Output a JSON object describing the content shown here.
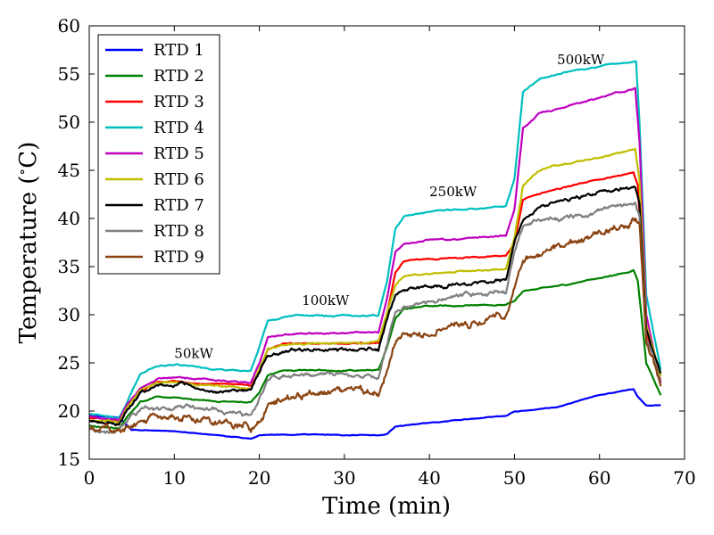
{
  "chart_data": {
    "type": "line",
    "xlabel": "Time (min)",
    "ylabel": "Temperature (∘C)",
    "ylabel_parts": {
      "open": "Temperature (",
      "degree": "∘",
      "unit": "C)"
    },
    "xlim": [
      0,
      70
    ],
    "ylim": [
      15,
      60
    ],
    "xticks": [
      0,
      10,
      20,
      30,
      40,
      50,
      60,
      70
    ],
    "yticks": [
      15,
      20,
      25,
      30,
      35,
      40,
      45,
      50,
      55,
      60
    ],
    "grid": false,
    "legend_position": "top-left",
    "annotations": [
      {
        "text": "50kW",
        "x": 10,
        "y": 25.5
      },
      {
        "text": "100kW",
        "x": 25,
        "y": 31.0
      },
      {
        "text": "250kW",
        "x": 40,
        "y": 42.3
      },
      {
        "text": "500kW",
        "x": 55,
        "y": 56.0
      }
    ],
    "series": [
      {
        "name": "RTD 1",
        "color": "#0000ff",
        "noise": 0.05,
        "x": [
          0,
          3.5,
          5,
          10,
          15,
          19,
          20,
          25,
          30,
          34,
          35,
          36,
          40,
          45,
          49,
          50,
          55,
          60,
          64,
          64.5,
          65.5,
          67.2
        ],
        "y": [
          19.6,
          19.3,
          18.0,
          17.9,
          17.5,
          17.1,
          17.5,
          17.6,
          17.5,
          17.5,
          17.6,
          18.4,
          18.8,
          19.2,
          19.5,
          19.9,
          20.4,
          21.7,
          22.3,
          21.5,
          20.6,
          20.6
        ]
      },
      {
        "name": "RTD 2",
        "color": "#008000",
        "noise": 0.1,
        "x": [
          0,
          3.5,
          4.5,
          6,
          8,
          10,
          15,
          19,
          20,
          21,
          23,
          30,
          34,
          35,
          36,
          37,
          40,
          45,
          49,
          50,
          51,
          55,
          60,
          64,
          64.5,
          65.5,
          67.2
        ],
        "y": [
          18.5,
          18.2,
          19.5,
          21.0,
          21.5,
          21.4,
          21.1,
          21.0,
          22.0,
          23.8,
          24.3,
          24.2,
          24.2,
          26.5,
          29.5,
          30.5,
          30.9,
          31.0,
          31.1,
          31.5,
          32.5,
          33.0,
          33.8,
          34.6,
          33.5,
          25.0,
          21.7
        ]
      },
      {
        "name": "RTD 3",
        "color": "#ff0000",
        "noise": 0.1,
        "x": [
          0,
          3.5,
          4.5,
          6,
          8,
          10,
          15,
          19,
          20,
          21,
          23,
          30,
          34,
          35,
          36,
          37,
          40,
          45,
          49,
          50,
          51,
          55,
          60,
          64,
          64.5,
          65.5,
          67.2
        ],
        "y": [
          19.3,
          19.0,
          20.5,
          22.0,
          23.0,
          23.0,
          22.9,
          22.6,
          24.0,
          26.5,
          27.0,
          27.0,
          27.1,
          30.0,
          34.5,
          35.6,
          35.8,
          36.0,
          36.1,
          37.5,
          42.0,
          43.0,
          44.0,
          44.8,
          43.5,
          28.0,
          23.2
        ]
      },
      {
        "name": "RTD 4",
        "color": "#00bfbf",
        "noise": 0.12,
        "x": [
          0,
          3.5,
          4.5,
          6,
          8,
          10,
          15,
          19,
          20,
          21,
          23,
          30,
          34,
          35,
          36,
          37,
          40,
          45,
          49,
          50,
          51,
          53,
          55,
          60,
          64.3,
          64.7,
          65.5,
          67.2
        ],
        "y": [
          19.7,
          19.3,
          21.0,
          23.8,
          24.7,
          24.9,
          24.3,
          24.1,
          26.5,
          29.3,
          29.8,
          29.9,
          30.0,
          33.5,
          39.0,
          40.3,
          40.7,
          41.0,
          41.2,
          44.0,
          53.0,
          54.5,
          55.0,
          55.8,
          56.3,
          50.0,
          32.0,
          24.3
        ]
      },
      {
        "name": "RTD 5",
        "color": "#bf00bf",
        "noise": 0.12,
        "x": [
          0,
          3.5,
          4.5,
          6,
          8,
          10,
          15,
          19,
          20,
          21,
          23,
          30,
          34,
          35,
          36,
          37,
          40,
          45,
          49,
          50,
          51,
          53,
          55,
          60,
          64.2,
          64.7,
          65.5,
          67.2
        ],
        "y": [
          19.4,
          19.1,
          20.8,
          22.5,
          23.3,
          23.5,
          23.2,
          23.0,
          25.0,
          27.7,
          28.0,
          28.1,
          28.1,
          31.5,
          36.5,
          37.4,
          37.8,
          38.0,
          38.3,
          41.0,
          49.5,
          51.0,
          51.5,
          52.5,
          53.6,
          48.0,
          30.0,
          23.0
        ]
      },
      {
        "name": "RTD 6",
        "color": "#bfbf00",
        "noise": 0.14,
        "x": [
          0,
          3.5,
          4.5,
          6,
          8,
          10,
          15,
          19,
          20,
          21,
          23,
          30,
          34,
          35,
          36,
          37,
          40,
          45,
          49,
          50,
          51,
          53,
          55,
          60,
          64.2,
          64.7,
          65.5,
          67.2
        ],
        "y": [
          19.0,
          18.8,
          20.4,
          22.2,
          22.9,
          23.0,
          22.7,
          22.4,
          24.5,
          26.5,
          27.0,
          27.0,
          27.2,
          30.0,
          33.0,
          34.0,
          34.3,
          34.6,
          34.8,
          38.0,
          43.5,
          45.0,
          45.5,
          46.4,
          47.3,
          44.0,
          29.0,
          23.5
        ]
      },
      {
        "name": "RTD 7",
        "color": "#000000",
        "noise": 0.3,
        "x": [
          0,
          3.5,
          4.5,
          6,
          8,
          10,
          15,
          19,
          20,
          21,
          23,
          30,
          34,
          35,
          36,
          37,
          40,
          45,
          49,
          50,
          51,
          53,
          55,
          60,
          64.2,
          64.7,
          65.5,
          67.2
        ],
        "y": [
          19.0,
          18.8,
          20.2,
          21.8,
          22.6,
          22.6,
          22.3,
          22.0,
          24.0,
          25.8,
          26.3,
          26.3,
          26.4,
          29.5,
          32.0,
          32.8,
          32.9,
          33.3,
          33.6,
          37.5,
          40.0,
          41.0,
          41.5,
          42.5,
          43.3,
          41.5,
          28.5,
          24.0
        ]
      },
      {
        "name": "RTD 8",
        "color": "#808080",
        "noise": 0.4,
        "x": [
          0,
          3.5,
          4.5,
          6,
          8,
          10,
          15,
          19,
          20,
          21,
          23,
          30,
          34,
          35,
          36,
          37,
          40,
          45,
          49,
          50,
          51,
          53,
          55,
          60,
          64.2,
          64.7,
          65.5,
          67.2
        ],
        "y": [
          18.2,
          18.0,
          19.0,
          20.3,
          20.5,
          20.8,
          20.2,
          19.5,
          21.0,
          22.8,
          23.5,
          23.8,
          23.5,
          27.0,
          30.5,
          31.0,
          31.2,
          31.8,
          32.0,
          36.5,
          39.0,
          39.5,
          40.0,
          40.5,
          41.5,
          40.0,
          27.5,
          23.2
        ]
      },
      {
        "name": "RTD 9",
        "color": "#8b4513",
        "noise": 0.7,
        "x": [
          0,
          3.5,
          4.5,
          6,
          8,
          10,
          15,
          19,
          20,
          21,
          23,
          30,
          34,
          35,
          36,
          37,
          40,
          45,
          49,
          50,
          51,
          53,
          55,
          60,
          64.2,
          64.7,
          65.5,
          67.2
        ],
        "y": [
          18.0,
          17.7,
          18.3,
          19.1,
          19.5,
          19.8,
          19.2,
          18.1,
          19.0,
          20.5,
          21.2,
          22.0,
          21.3,
          24.0,
          27.5,
          28.0,
          28.5,
          29.2,
          29.5,
          33.0,
          36.0,
          36.5,
          37.5,
          38.7,
          40.0,
          39.0,
          27.0,
          22.7
        ]
      }
    ]
  }
}
